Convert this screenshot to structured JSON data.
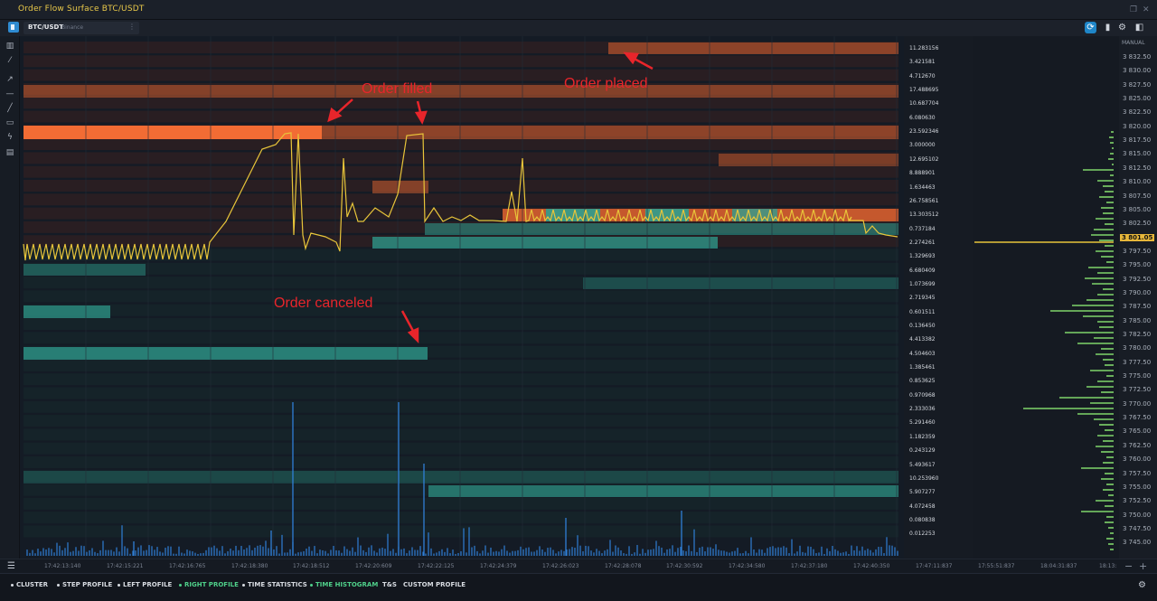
{
  "window": {
    "title": "Order Flow Surface BTC/USDT"
  },
  "toolbar": {
    "symbol": "BTC/USDT",
    "exchange": "Binance",
    "menu_dots": "⋮",
    "right_icons": [
      "sync-icon",
      "mouse-icon",
      "gear-icon",
      "panel-icon"
    ]
  },
  "left_tools": [
    "bar-chart-icon",
    "ruler-icon",
    "arrow-icon",
    "horizontal-line-icon",
    "trend-line-icon",
    "rectangle-icon",
    "magnet-icon",
    "tools-icon"
  ],
  "annotations": {
    "order_filled": "Order filled",
    "order_placed": "Order placed",
    "order_canceled": "Order canceled"
  },
  "volume_axis": [
    "11.283156",
    "3.421581",
    "4.712670",
    "17.488695",
    "10.687704",
    "6.080630",
    "23.592346",
    "3.000000",
    "12.695102",
    "8.888901",
    "1.634463",
    "26.758561",
    "13.303512",
    "0.737184",
    "2.274261",
    "1.329693",
    "6.680409",
    "1.073699",
    "2.719345",
    "0.601511",
    "0.136450",
    "4.413382",
    "4.504603",
    "1.385461",
    "0.853625",
    "0.970968",
    "2.333036",
    "5.291460",
    "1.182359",
    "0.243129",
    "5.493617",
    "10.253960",
    "5.907277",
    "4.072458",
    "0.080838",
    "0.012253"
  ],
  "price_axis": {
    "mode": "MANUAL",
    "labels": [
      "3 832.50",
      "3 830.00",
      "3 827.50",
      "3 825.00",
      "3 822.50",
      "3 820.00",
      "3 817.50",
      "3 815.00",
      "3 812.50",
      "3 810.00",
      "3 807.50",
      "3 805.00",
      "3 802.50",
      "3 801.05",
      "3 797.50",
      "3 795.00",
      "3 792.50",
      "3 790.00",
      "3 787.50",
      "3 785.00",
      "3 782.50",
      "3 780.00",
      "3 777.50",
      "3 775.00",
      "3 772.50",
      "3 770.00",
      "3 767.50",
      "3 765.00",
      "3 762.50",
      "3 760.00",
      "3 757.50",
      "3 755.00",
      "3 752.50",
      "3 750.00",
      "3 747.50",
      "3 745.00"
    ],
    "current_price": "3 801.05",
    "current_color": "#e7b73a"
  },
  "time_axis": [
    "17:42:13:140",
    "17:42:15:221",
    "17:42:16:765",
    "17:42:18:380",
    "17:42:18:512",
    "17:42:20:609",
    "17:42:22:125",
    "17:42:24:379",
    "17:42:26:023",
    "17:42:28:078",
    "17:42:30:592",
    "17:42:34:580",
    "17:42:37:180",
    "17:42:40:350",
    "17:47:11:837",
    "17:55:51:837",
    "18:04:31:837",
    "18:13:"
  ],
  "bottom_tabs": [
    {
      "label": "CLUSTER",
      "active": false
    },
    {
      "label": "STEP PROFILE",
      "active": false
    },
    {
      "label": "LEFT PROFILE",
      "active": false
    },
    {
      "label": "RIGHT PROFILE",
      "active": true
    },
    {
      "label": "TIME STATISTICS",
      "active": false
    },
    {
      "label": "TIME HISTOGRAM",
      "active": true
    },
    {
      "label": "T&S",
      "active": false
    },
    {
      "label": "CUSTOM PROFILE",
      "active": false
    }
  ],
  "colors": {
    "ask": "#e0632f",
    "bid": "#2f9e8f",
    "price_line": "#e8c53a",
    "volume": "#2f7fd6",
    "profile": "#7fd46a",
    "annotation": "#e8252b"
  }
}
